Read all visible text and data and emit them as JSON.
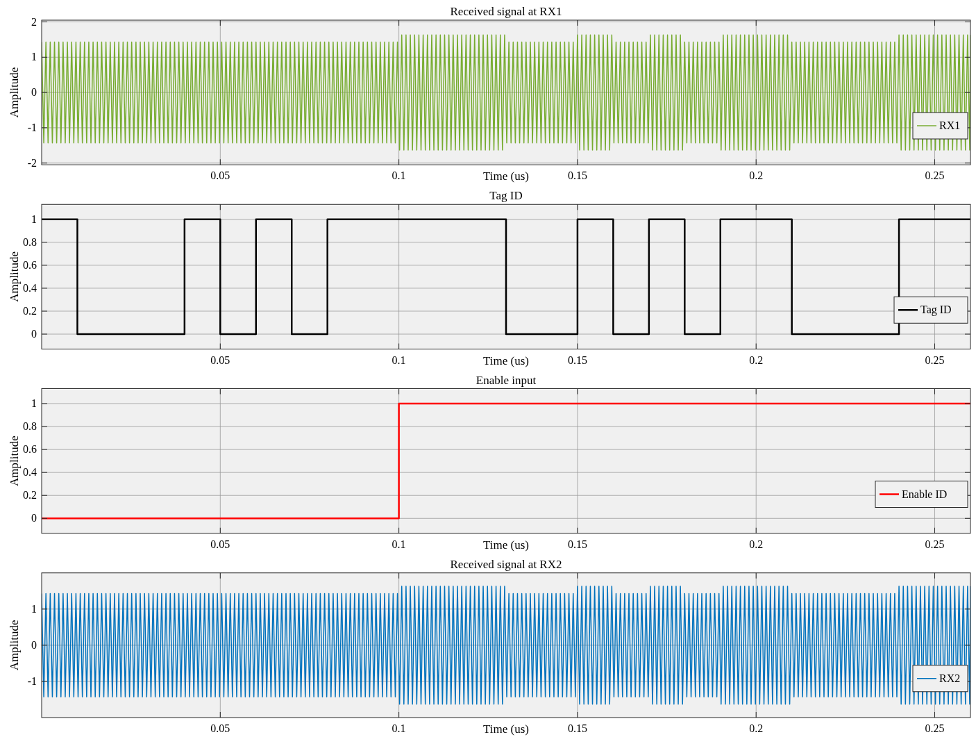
{
  "chart_data": [
    {
      "type": "line",
      "title": "Received signal at RX1",
      "xlabel": "Time (us)",
      "ylabel": "Amplitude",
      "xlim": [
        0,
        0.26
      ],
      "xticks": [
        0.05,
        0.1,
        0.15,
        0.2,
        0.25
      ],
      "ylim": [
        -2.05,
        2.05
      ],
      "yticks": [
        -2,
        -1,
        0,
        1,
        2
      ],
      "grid": true,
      "legend": "bottom right",
      "x": [
        0,
        0.0006,
        0.0012,
        0.0018,
        0.0024,
        0.003,
        0.0036,
        0.0042,
        0.0048,
        0.0054,
        0.006,
        0.0066,
        0.0072,
        0.0078,
        0.0084,
        0.009,
        0.0096,
        0.0102,
        0.0108,
        0.0114,
        0.012,
        0.0126,
        0.0132,
        0.0138,
        0.0144,
        0.015,
        0.0156,
        0.0162,
        0.0168,
        0.0174,
        0.018,
        0.0186,
        0.0192,
        0.0198,
        0.0204,
        0.021,
        0.0216,
        0.0222,
        0.0228,
        0.0234,
        0.024,
        0.0246,
        0.0252,
        0.0258,
        0.0264,
        0.027,
        0.0276,
        0.0282,
        0.0288,
        0.0294,
        0.03,
        0.0306,
        0.0312,
        0.0318,
        0.0324,
        0.033,
        0.0336,
        0.0342,
        0.0348,
        0.0354,
        0.036,
        0.0366,
        0.0372,
        0.0378,
        0.0384,
        0.039,
        0.0396,
        0.0402,
        0.0408,
        0.0414,
        0.042,
        0.0426,
        0.0432,
        0.0438,
        0.0444,
        0.045,
        0.0456,
        0.0462,
        0.0468,
        0.0474,
        0.048,
        0.0486,
        0.0492,
        0.0498,
        0.0504,
        0.051,
        0.0516,
        0.0522,
        0.0528,
        0.0534,
        0.054,
        0.0546,
        0.0552,
        0.0558,
        0.0564,
        0.057,
        0.0576,
        0.0582,
        0.0588,
        0.0594,
        0.06,
        0.0606,
        0.0612,
        0.0618,
        0.0624,
        0.063,
        0.0636,
        0.0642,
        0.0648,
        0.0654,
        0.066,
        0.0666,
        0.0672,
        0.0678,
        0.0684,
        0.069,
        0.0696,
        0.0702,
        0.0708,
        0.0714,
        0.072,
        0.0726,
        0.0732,
        0.0738,
        0.0744,
        0.075,
        0.0756,
        0.0762,
        0.0768,
        0.0774,
        0.078,
        0.0786,
        0.0792,
        0.0798,
        0.0804,
        0.081,
        0.0816,
        0.0822,
        0.0828,
        0.0834,
        0.084,
        0.0846,
        0.0852,
        0.0858,
        0.0864,
        0.087,
        0.0876,
        0.0882,
        0.0888,
        0.0894,
        0.09,
        0.0906,
        0.0912,
        0.0918,
        0.0924,
        0.093,
        0.0936,
        0.0942,
        0.0948,
        0.0954,
        0.096,
        0.0966,
        0.0972,
        0.0978,
        0.0984,
        0.099,
        0.0996,
        0.1002,
        0.1008,
        0.1014,
        0.102,
        0.1026,
        0.1032,
        0.1038,
        0.1044,
        0.105,
        0.1056,
        0.1062,
        0.1068,
        0.1074,
        0.108,
        0.1086,
        0.1092,
        0.1098,
        0.1104,
        0.111,
        0.1116,
        0.1122,
        0.1128,
        0.1134,
        0.114,
        0.1146,
        0.1152,
        0.1158,
        0.1164,
        0.117,
        0.1176,
        0.1182,
        0.1188,
        0.1194,
        0.12,
        0.1206,
        0.1212,
        0.1218,
        0.1224,
        0.123,
        0.1236,
        0.1242,
        0.1248,
        0.1254,
        0.126,
        0.1266,
        0.1272,
        0.1278,
        0.1284,
        0.129,
        0.1296,
        0.1302,
        0.1308,
        0.1314,
        0.132,
        0.1326,
        0.1332,
        0.1338,
        0.1344,
        0.135,
        0.1356,
        0.1362,
        0.1368,
        0.1374,
        0.138,
        0.1386,
        0.1392,
        0.1398,
        0.1404,
        0.141,
        0.1416,
        0.1422,
        0.1428,
        0.1434,
        0.144,
        0.1446,
        0.1452,
        0.1458,
        0.1464,
        0.147,
        0.1476,
        0.1482,
        0.1488,
        0.1494,
        0.15,
        0.1506,
        0.1512,
        0.1518,
        0.1524,
        0.153,
        0.1536,
        0.1542,
        0.1548,
        0.1554,
        0.156,
        0.1566,
        0.1572,
        0.1578,
        0.1584,
        0.159,
        0.1596,
        0.1602,
        0.1608,
        0.1614,
        0.162,
        0.1626,
        0.1632,
        0.1638,
        0.1644,
        0.165,
        0.1656,
        0.1662,
        0.1668,
        0.1674,
        0.168,
        0.1686,
        0.1692,
        0.1698,
        0.1704,
        0.171,
        0.1716,
        0.1722,
        0.1728,
        0.1734,
        0.174,
        0.1746,
        0.1752,
        0.1758,
        0.1764,
        0.177,
        0.1776,
        0.1782,
        0.1788,
        0.1794,
        0.18,
        0.1806,
        0.1812,
        0.1818,
        0.1824,
        0.183,
        0.1836,
        0.1842,
        0.1848,
        0.1854,
        0.186,
        0.1866,
        0.1872,
        0.1878,
        0.1884,
        0.189,
        0.1896,
        0.1902,
        0.1908,
        0.1914,
        0.192,
        0.1926,
        0.1932,
        0.1938,
        0.1944,
        0.195,
        0.1956,
        0.1962,
        0.1968,
        0.1974,
        0.198,
        0.1986,
        0.1992,
        0.1998,
        0.2004,
        0.201,
        0.2016,
        0.2022,
        0.2028,
        0.2034,
        0.204,
        0.2046,
        0.2052,
        0.2058,
        0.2064,
        0.207,
        0.2076,
        0.2082,
        0.2088,
        0.2094,
        0.21,
        0.2106,
        0.2112,
        0.2118,
        0.2124,
        0.213,
        0.2136,
        0.2142,
        0.2148,
        0.2154,
        0.216,
        0.2166,
        0.2172,
        0.2178,
        0.2184,
        0.219,
        0.2196,
        0.2202,
        0.2208,
        0.2214,
        0.222,
        0.2226,
        0.2232,
        0.2238,
        0.2244,
        0.225,
        0.2256,
        0.2262,
        0.2268,
        0.2274,
        0.228,
        0.2286,
        0.2292,
        0.2298,
        0.2304,
        0.231,
        0.2316,
        0.2322,
        0.2328,
        0.2334,
        0.234,
        0.2346,
        0.2352,
        0.2358,
        0.2364,
        0.237,
        0.2376,
        0.2382,
        0.2388,
        0.2394,
        0.24,
        0.2406,
        0.2412,
        0.2418,
        0.2424,
        0.243,
        0.2436,
        0.2442,
        0.2448,
        0.2454,
        0.246,
        0.2466,
        0.2472,
        0.2478,
        0.2484,
        0.249,
        0.2496,
        0.2502,
        0.2508,
        0.2514,
        0.252,
        0.2526,
        0.2532,
        0.2538,
        0.2544,
        0.255,
        0.2556,
        0.2562,
        0.2568,
        0.2574,
        0.258,
        0.2586,
        0.2592,
        0.2598,
        0.26
      ],
      "series": [
        {
          "name": "RX1",
          "color": "#77ac30",
          "values": [
            1.43,
            -1.43,
            1.43,
            -1.43,
            1.43,
            -1.43,
            1.43,
            -1.43,
            1.43,
            -1.43,
            1.43,
            -1.43,
            1.43,
            -1.43,
            1.43,
            -1.43,
            1.43,
            -1.43,
            1.43,
            -1.43,
            1.43,
            -1.43,
            1.43,
            -1.43,
            1.43,
            -1.43,
            1.43,
            -1.43,
            1.43,
            -1.43,
            1.43,
            -1.43,
            1.43,
            -1.43,
            1.43,
            -1.43,
            1.43,
            -1.43,
            1.43,
            -1.43,
            1.43,
            -1.43,
            1.43,
            -1.43,
            1.43,
            -1.43,
            1.43,
            -1.43,
            1.43,
            -1.43,
            1.43,
            -1.43,
            1.43,
            -1.43,
            1.43,
            -1.43,
            1.43,
            -1.43,
            1.43,
            -1.43,
            1.43,
            -1.43,
            1.43,
            -1.43,
            1.43,
            -1.43,
            1.43,
            -1.43,
            1.43,
            -1.43,
            1.43,
            -1.43,
            1.43,
            -1.43,
            1.43,
            -1.43,
            1.43,
            -1.43,
            1.43,
            -1.43,
            1.43,
            -1.43,
            1.43,
            -1.43,
            1.43,
            -1.43,
            1.43,
            -1.43,
            1.43,
            -1.43,
            1.43,
            -1.43,
            1.43,
            -1.43,
            1.43,
            -1.43,
            1.43,
            -1.43,
            1.43,
            -1.43,
            1.43,
            -1.43,
            1.43,
            -1.43,
            1.43,
            -1.43,
            1.43,
            -1.43,
            1.43,
            -1.43,
            1.43,
            -1.43,
            1.43,
            -1.43,
            1.43,
            -1.43,
            1.43,
            -1.43,
            1.43,
            -1.43,
            1.43,
            -1.43,
            1.43,
            -1.43,
            1.43,
            -1.43,
            1.43,
            -1.43,
            1.43,
            -1.43,
            1.43,
            -1.43,
            1.43,
            -1.43,
            1.43,
            -1.43,
            1.43,
            -1.43,
            1.43,
            -1.43,
            1.43,
            -1.43,
            1.43,
            -1.43,
            1.43,
            -1.43,
            1.43,
            -1.43,
            1.43,
            -1.43,
            1.43,
            -1.43,
            1.43,
            -1.43,
            1.43,
            -1.43,
            1.43,
            -1.43,
            1.43,
            -1.43,
            1.43,
            -1.43,
            1.43,
            -1.43,
            1.43,
            -1.43,
            1.43,
            -1.63,
            1.63,
            -1.63,
            1.63,
            -1.63,
            1.63,
            -1.63,
            1.63,
            -1.63,
            1.63,
            -1.63,
            1.63,
            -1.63,
            1.63,
            -1.63,
            1.63,
            -1.63,
            1.63,
            -1.63,
            1.63,
            -1.63,
            1.63,
            -1.63,
            1.63,
            -1.63,
            1.63,
            -1.63,
            1.63,
            -1.63,
            1.63,
            -1.63,
            1.63,
            -1.63,
            1.63,
            -1.63,
            1.63,
            -1.63,
            1.63,
            -1.63,
            1.63,
            -1.63,
            1.63,
            -1.63,
            1.63,
            -1.63,
            1.63,
            -1.63,
            1.63,
            -1.63,
            1.63,
            -1.43,
            1.43,
            -1.43,
            1.43,
            -1.43,
            1.43,
            -1.43,
            1.43,
            -1.43,
            1.43,
            -1.43,
            1.43,
            -1.43,
            1.43,
            -1.43,
            1.43,
            -1.43,
            1.43,
            -1.43,
            1.43,
            -1.43,
            1.43,
            -1.43,
            1.43,
            -1.43,
            1.43,
            -1.43,
            1.43,
            -1.43,
            1.43,
            -1.43,
            1.43,
            -1.43,
            1.63,
            -1.63,
            1.63,
            -1.63,
            1.63,
            -1.63,
            1.63,
            -1.63,
            1.63,
            -1.63,
            1.63,
            -1.63,
            1.63,
            -1.63,
            1.63,
            -1.63,
            1.63,
            -1.43,
            1.43,
            -1.43,
            1.43,
            -1.43,
            1.43,
            -1.43,
            1.43,
            -1.43,
            1.43,
            -1.43,
            1.43,
            -1.43,
            1.43,
            -1.43,
            1.43,
            -1.43,
            1.63,
            -1.63,
            1.63,
            -1.63,
            1.63,
            -1.63,
            1.63,
            -1.63,
            1.63,
            -1.63,
            1.63,
            -1.63,
            1.63,
            -1.63,
            1.63,
            -1.63,
            1.43,
            -1.43,
            1.43,
            -1.43,
            1.43,
            -1.43,
            1.43,
            -1.43,
            1.43,
            -1.43,
            1.43,
            -1.43,
            1.43,
            -1.43,
            1.43,
            -1.43,
            1.43,
            -1.63,
            1.63,
            -1.63,
            1.63,
            -1.63,
            1.63,
            -1.63,
            1.63,
            -1.63,
            1.63,
            -1.63,
            1.63,
            -1.63,
            1.63,
            -1.63,
            1.63,
            -1.63,
            1.63,
            -1.63,
            1.63,
            -1.63,
            1.63,
            -1.63,
            1.63,
            -1.63,
            1.63,
            -1.63,
            1.63,
            -1.63,
            1.63,
            -1.63,
            1.63,
            -1.63,
            1.43,
            -1.43,
            1.43,
            -1.43,
            1.43,
            -1.43,
            1.43,
            -1.43,
            1.43,
            -1.43,
            1.43,
            -1.43,
            1.43,
            -1.43,
            1.43,
            -1.43,
            1.43,
            -1.43,
            1.43,
            -1.43,
            1.43,
            -1.43,
            1.43,
            -1.43,
            1.43,
            -1.43,
            1.43,
            -1.43,
            1.43,
            -1.43,
            1.43,
            -1.43,
            1.43,
            -1.43,
            1.43,
            -1.43,
            1.43,
            -1.43,
            1.43,
            -1.43,
            1.43,
            -1.43,
            1.43,
            -1.43,
            1.43,
            -1.43,
            1.43,
            -1.43,
            1.43,
            -1.43,
            1.63,
            -1.63,
            1.63,
            -1.63,
            1.63,
            -1.63,
            1.63,
            -1.63,
            1.63,
            -1.63,
            1.63,
            -1.63,
            1.63,
            -1.63,
            1.63,
            -1.63,
            1.63,
            -1.63,
            1.63,
            -1.63,
            1.63,
            -1.63,
            1.63,
            -1.63,
            1.63,
            -1.63,
            1.63,
            -1.63,
            1.63,
            -1.63,
            1.63,
            -1.63,
            1.63,
            -1.63,
            1.63
          ]
        }
      ]
    },
    {
      "type": "step",
      "title": "Tag ID",
      "xlabel": "Time (us)",
      "ylabel": "Amplitude",
      "xlim": [
        0,
        0.26
      ],
      "xticks": [
        0.05,
        0.1,
        0.15,
        0.2,
        0.25
      ],
      "ylim": [
        -0.13,
        1.13
      ],
      "yticks": [
        0,
        0.2,
        0.4,
        0.6,
        0.8,
        1
      ],
      "grid": true,
      "legend": "bottom right",
      "x": [
        0,
        0.01,
        0.04,
        0.05,
        0.06,
        0.07,
        0.08,
        0.13,
        0.15,
        0.16,
        0.17,
        0.18,
        0.19,
        0.21,
        0.24,
        0.26
      ],
      "series": [
        {
          "name": "Tag ID",
          "color": "#000000",
          "values": [
            1,
            0,
            1,
            0,
            1,
            0,
            1,
            0,
            1,
            0,
            1,
            0,
            1,
            0,
            1,
            1
          ]
        }
      ]
    },
    {
      "type": "step",
      "title": "Enable input",
      "xlabel": "Time (us)",
      "ylabel": "Amplitude",
      "xlim": [
        0,
        0.26
      ],
      "xticks": [
        0.05,
        0.1,
        0.15,
        0.2,
        0.25
      ],
      "ylim": [
        -0.13,
        1.13
      ],
      "yticks": [
        0,
        0.2,
        0.4,
        0.6,
        0.8,
        1
      ],
      "grid": true,
      "legend": "bottom right",
      "x": [
        0,
        0.1,
        0.26
      ],
      "series": [
        {
          "name": "Enable ID",
          "color": "#ff0000",
          "values": [
            0,
            1,
            1
          ]
        }
      ]
    },
    {
      "type": "line",
      "title": "Received signal at RX2",
      "xlabel": "Time (us)",
      "ylabel": "Amplitude",
      "xlim": [
        0,
        0.26
      ],
      "xticks": [
        0.05,
        0.1,
        0.15,
        0.2,
        0.25
      ],
      "ylim": [
        -2,
        2
      ],
      "yticks": [
        -1,
        0,
        1
      ],
      "grid": true,
      "legend": "bottom right",
      "x": [
        0,
        0.0006,
        0.0012,
        0.0018,
        0.0024,
        0.003,
        0.0036,
        0.0042,
        0.0048,
        0.0054,
        0.006,
        0.0066,
        0.0072,
        0.0078,
        0.0084,
        0.009,
        0.0096,
        0.0102,
        0.0108,
        0.0114,
        0.012,
        0.0126,
        0.0132,
        0.0138,
        0.0144,
        0.015,
        0.0156,
        0.0162,
        0.0168,
        0.0174,
        0.018,
        0.0186,
        0.0192,
        0.0198,
        0.0204,
        0.021,
        0.0216,
        0.0222,
        0.0228,
        0.0234,
        0.024,
        0.0246,
        0.0252,
        0.0258,
        0.0264,
        0.027,
        0.0276,
        0.0282,
        0.0288,
        0.0294,
        0.03,
        0.0306,
        0.0312,
        0.0318,
        0.0324,
        0.033,
        0.0336,
        0.0342,
        0.0348,
        0.0354,
        0.036,
        0.0366,
        0.0372,
        0.0378,
        0.0384,
        0.039,
        0.0396,
        0.0402,
        0.0408,
        0.0414,
        0.042,
        0.0426,
        0.0432,
        0.0438,
        0.0444,
        0.045,
        0.0456,
        0.0462,
        0.0468,
        0.0474,
        0.048,
        0.0486,
        0.0492,
        0.0498,
        0.0504,
        0.051,
        0.0516,
        0.0522,
        0.0528,
        0.0534,
        0.054,
        0.0546,
        0.0552,
        0.0558,
        0.0564,
        0.057,
        0.0576,
        0.0582,
        0.0588,
        0.0594,
        0.06,
        0.0606,
        0.0612,
        0.0618,
        0.0624,
        0.063,
        0.0636,
        0.0642,
        0.0648,
        0.0654,
        0.066,
        0.0666,
        0.0672,
        0.0678,
        0.0684,
        0.069,
        0.0696,
        0.0702,
        0.0708,
        0.0714,
        0.072,
        0.0726,
        0.0732,
        0.0738,
        0.0744,
        0.075,
        0.0756,
        0.0762,
        0.0768,
        0.0774,
        0.078,
        0.0786,
        0.0792,
        0.0798,
        0.0804,
        0.081,
        0.0816,
        0.0822,
        0.0828,
        0.0834,
        0.084,
        0.0846,
        0.0852,
        0.0858,
        0.0864,
        0.087,
        0.0876,
        0.0882,
        0.0888,
        0.0894,
        0.09,
        0.0906,
        0.0912,
        0.0918,
        0.0924,
        0.093,
        0.0936,
        0.0942,
        0.0948,
        0.0954,
        0.096,
        0.0966,
        0.0972,
        0.0978,
        0.0984,
        0.099,
        0.0996,
        0.1002,
        0.1008,
        0.1014,
        0.102,
        0.1026,
        0.1032,
        0.1038,
        0.1044,
        0.105,
        0.1056,
        0.1062,
        0.1068,
        0.1074,
        0.108,
        0.1086,
        0.1092,
        0.1098,
        0.1104,
        0.111,
        0.1116,
        0.1122,
        0.1128,
        0.1134,
        0.114,
        0.1146,
        0.1152,
        0.1158,
        0.1164,
        0.117,
        0.1176,
        0.1182,
        0.1188,
        0.1194,
        0.12,
        0.1206,
        0.1212,
        0.1218,
        0.1224,
        0.123,
        0.1236,
        0.1242,
        0.1248,
        0.1254,
        0.126,
        0.1266,
        0.1272,
        0.1278,
        0.1284,
        0.129,
        0.1296,
        0.1302,
        0.1308,
        0.1314,
        0.132,
        0.1326,
        0.1332,
        0.1338,
        0.1344,
        0.135,
        0.1356,
        0.1362,
        0.1368,
        0.1374,
        0.138,
        0.1386,
        0.1392,
        0.1398,
        0.1404,
        0.141,
        0.1416,
        0.1422,
        0.1428,
        0.1434,
        0.144,
        0.1446,
        0.1452,
        0.1458,
        0.1464,
        0.147,
        0.1476,
        0.1482,
        0.1488,
        0.1494,
        0.15,
        0.1506,
        0.1512,
        0.1518,
        0.1524,
        0.153,
        0.1536,
        0.1542,
        0.1548,
        0.1554,
        0.156,
        0.1566,
        0.1572,
        0.1578,
        0.1584,
        0.159,
        0.1596,
        0.1602,
        0.1608,
        0.1614,
        0.162,
        0.1626,
        0.1632,
        0.1638,
        0.1644,
        0.165,
        0.1656,
        0.1662,
        0.1668,
        0.1674,
        0.168,
        0.1686,
        0.1692,
        0.1698,
        0.1704,
        0.171,
        0.1716,
        0.1722,
        0.1728,
        0.1734,
        0.174,
        0.1746,
        0.1752,
        0.1758,
        0.1764,
        0.177,
        0.1776,
        0.1782,
        0.1788,
        0.1794,
        0.18,
        0.1806,
        0.1812,
        0.1818,
        0.1824,
        0.183,
        0.1836,
        0.1842,
        0.1848,
        0.1854,
        0.186,
        0.1866,
        0.1872,
        0.1878,
        0.1884,
        0.189,
        0.1896,
        0.1902,
        0.1908,
        0.1914,
        0.192,
        0.1926,
        0.1932,
        0.1938,
        0.1944,
        0.195,
        0.1956,
        0.1962,
        0.1968,
        0.1974,
        0.198,
        0.1986,
        0.1992,
        0.1998,
        0.2004,
        0.201,
        0.2016,
        0.2022,
        0.2028,
        0.2034,
        0.204,
        0.2046,
        0.2052,
        0.2058,
        0.2064,
        0.207,
        0.2076,
        0.2082,
        0.2088,
        0.2094,
        0.21,
        0.2106,
        0.2112,
        0.2118,
        0.2124,
        0.213,
        0.2136,
        0.2142,
        0.2148,
        0.2154,
        0.216,
        0.2166,
        0.2172,
        0.2178,
        0.2184,
        0.219,
        0.2196,
        0.2202,
        0.2208,
        0.2214,
        0.222,
        0.2226,
        0.2232,
        0.2238,
        0.2244,
        0.225,
        0.2256,
        0.2262,
        0.2268,
        0.2274,
        0.228,
        0.2286,
        0.2292,
        0.2298,
        0.2304,
        0.231,
        0.2316,
        0.2322,
        0.2328,
        0.2334,
        0.234,
        0.2346,
        0.2352,
        0.2358,
        0.2364,
        0.237,
        0.2376,
        0.2382,
        0.2388,
        0.2394,
        0.24,
        0.2406,
        0.2412,
        0.2418,
        0.2424,
        0.243,
        0.2436,
        0.2442,
        0.2448,
        0.2454,
        0.246,
        0.2466,
        0.2472,
        0.2478,
        0.2484,
        0.249,
        0.2496,
        0.2502,
        0.2508,
        0.2514,
        0.252,
        0.2526,
        0.2532,
        0.2538,
        0.2544,
        0.255,
        0.2556,
        0.2562,
        0.2568,
        0.2574,
        0.258,
        0.2586,
        0.2592,
        0.2598,
        0.26
      ],
      "series": [
        {
          "name": "RX2",
          "color": "#0072bd",
          "values": [
            1.43,
            -1.43,
            1.43,
            -1.43,
            1.43,
            -1.43,
            1.43,
            -1.43,
            1.43,
            -1.43,
            1.43,
            -1.43,
            1.43,
            -1.43,
            1.43,
            -1.43,
            1.43,
            -1.43,
            1.43,
            -1.43,
            1.43,
            -1.43,
            1.43,
            -1.43,
            1.43,
            -1.43,
            1.43,
            -1.43,
            1.43,
            -1.43,
            1.43,
            -1.43,
            1.43,
            -1.43,
            1.43,
            -1.43,
            1.43,
            -1.43,
            1.43,
            -1.43,
            1.43,
            -1.43,
            1.43,
            -1.43,
            1.43,
            -1.43,
            1.43,
            -1.43,
            1.43,
            -1.43,
            1.43,
            -1.43,
            1.43,
            -1.43,
            1.43,
            -1.43,
            1.43,
            -1.43,
            1.43,
            -1.43,
            1.43,
            -1.43,
            1.43,
            -1.43,
            1.43,
            -1.43,
            1.43,
            -1.43,
            1.43,
            -1.43,
            1.43,
            -1.43,
            1.43,
            -1.43,
            1.43,
            -1.43,
            1.43,
            -1.43,
            1.43,
            -1.43,
            1.43,
            -1.43,
            1.43,
            -1.43,
            1.43,
            -1.43,
            1.43,
            -1.43,
            1.43,
            -1.43,
            1.43,
            -1.43,
            1.43,
            -1.43,
            1.43,
            -1.43,
            1.43,
            -1.43,
            1.43,
            -1.43,
            1.43,
            -1.43,
            1.43,
            -1.43,
            1.43,
            -1.43,
            1.43,
            -1.43,
            1.43,
            -1.43,
            1.43,
            -1.43,
            1.43,
            -1.43,
            1.43,
            -1.43,
            1.43,
            -1.43,
            1.43,
            -1.43,
            1.43,
            -1.43,
            1.43,
            -1.43,
            1.43,
            -1.43,
            1.43,
            -1.43,
            1.43,
            -1.43,
            1.43,
            -1.43,
            1.43,
            -1.43,
            1.43,
            -1.43,
            1.43,
            -1.43,
            1.43,
            -1.43,
            1.43,
            -1.43,
            1.43,
            -1.43,
            1.43,
            -1.43,
            1.43,
            -1.43,
            1.43,
            -1.43,
            1.43,
            -1.43,
            1.43,
            -1.43,
            1.43,
            -1.43,
            1.43,
            -1.43,
            1.43,
            -1.43,
            1.43,
            -1.43,
            1.43,
            -1.43,
            1.43,
            -1.43,
            1.43,
            -1.63,
            1.63,
            -1.63,
            1.63,
            -1.63,
            1.63,
            -1.63,
            1.63,
            -1.63,
            1.63,
            -1.63,
            1.63,
            -1.63,
            1.63,
            -1.63,
            1.63,
            -1.63,
            1.63,
            -1.63,
            1.63,
            -1.63,
            1.63,
            -1.63,
            1.63,
            -1.63,
            1.63,
            -1.63,
            1.63,
            -1.63,
            1.63,
            -1.63,
            1.63,
            -1.63,
            1.63,
            -1.63,
            1.63,
            -1.63,
            1.63,
            -1.63,
            1.63,
            -1.63,
            1.63,
            -1.63,
            1.63,
            -1.63,
            1.63,
            -1.63,
            1.63,
            -1.63,
            1.63,
            -1.43,
            1.43,
            -1.43,
            1.43,
            -1.43,
            1.43,
            -1.43,
            1.43,
            -1.43,
            1.43,
            -1.43,
            1.43,
            -1.43,
            1.43,
            -1.43,
            1.43,
            -1.43,
            1.43,
            -1.43,
            1.43,
            -1.43,
            1.43,
            -1.43,
            1.43,
            -1.43,
            1.43,
            -1.43,
            1.43,
            -1.43,
            1.43,
            -1.43,
            1.43,
            -1.43,
            1.63,
            -1.63,
            1.63,
            -1.63,
            1.63,
            -1.63,
            1.63,
            -1.63,
            1.63,
            -1.63,
            1.63,
            -1.63,
            1.63,
            -1.63,
            1.63,
            -1.63,
            1.63,
            -1.43,
            1.43,
            -1.43,
            1.43,
            -1.43,
            1.43,
            -1.43,
            1.43,
            -1.43,
            1.43,
            -1.43,
            1.43,
            -1.43,
            1.43,
            -1.43,
            1.43,
            -1.43,
            1.63,
            -1.63,
            1.63,
            -1.63,
            1.63,
            -1.63,
            1.63,
            -1.63,
            1.63,
            -1.63,
            1.63,
            -1.63,
            1.63,
            -1.63,
            1.63,
            -1.63,
            1.43,
            -1.43,
            1.43,
            -1.43,
            1.43,
            -1.43,
            1.43,
            -1.43,
            1.43,
            -1.43,
            1.43,
            -1.43,
            1.43,
            -1.43,
            1.43,
            -1.43,
            1.43,
            -1.63,
            1.63,
            -1.63,
            1.63,
            -1.63,
            1.63,
            -1.63,
            1.63,
            -1.63,
            1.63,
            -1.63,
            1.63,
            -1.63,
            1.63,
            -1.63,
            1.63,
            -1.63,
            1.63,
            -1.63,
            1.63,
            -1.63,
            1.63,
            -1.63,
            1.63,
            -1.63,
            1.63,
            -1.63,
            1.63,
            -1.63,
            1.63,
            -1.63,
            1.63,
            -1.63,
            1.43,
            -1.43,
            1.43,
            -1.43,
            1.43,
            -1.43,
            1.43,
            -1.43,
            1.43,
            -1.43,
            1.43,
            -1.43,
            1.43,
            -1.43,
            1.43,
            -1.43,
            1.43,
            -1.43,
            1.43,
            -1.43,
            1.43,
            -1.43,
            1.43,
            -1.43,
            1.43,
            -1.43,
            1.43,
            -1.43,
            1.43,
            -1.43,
            1.43,
            -1.43,
            1.43,
            -1.43,
            1.43,
            -1.43,
            1.43,
            -1.43,
            1.43,
            -1.43,
            1.43,
            -1.43,
            1.43,
            -1.43,
            1.43,
            -1.43,
            1.43,
            -1.43,
            1.43,
            -1.43,
            1.63,
            -1.63,
            1.63,
            -1.63,
            1.63,
            -1.63,
            1.63,
            -1.63,
            1.63,
            -1.63,
            1.63,
            -1.63,
            1.63,
            -1.63,
            1.63,
            -1.63,
            1.63,
            -1.63,
            1.63,
            -1.63,
            1.63,
            -1.63,
            1.63,
            -1.63,
            1.63,
            -1.63,
            1.63,
            -1.63,
            1.63,
            -1.63,
            1.63,
            -1.63,
            1.63,
            -1.63,
            1.63
          ]
        }
      ]
    }
  ]
}
